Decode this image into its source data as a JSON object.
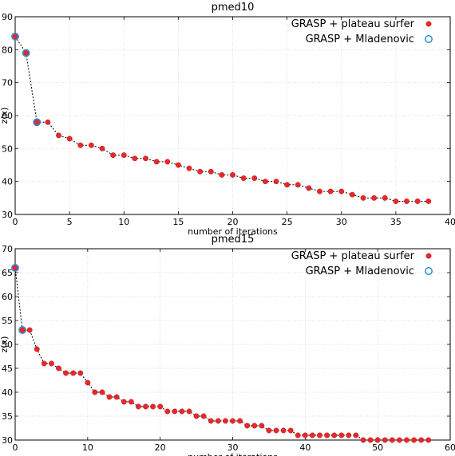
{
  "chart_data": [
    {
      "type": "line",
      "title": "pmed10",
      "xlabel": "number of iterations",
      "ylabel": "z(x)",
      "xlim": [
        0,
        40
      ],
      "ylim": [
        30,
        90
      ],
      "x_ticks": [
        "0",
        "5",
        "10",
        "15",
        "20",
        "25",
        "30",
        "35",
        "40"
      ],
      "y_ticks": [
        "30",
        "40",
        "50",
        "60",
        "70",
        "80",
        "90"
      ],
      "grid": true,
      "legend_position": "top-right",
      "series": [
        {
          "name": "GRASP + plateau surfer",
          "marker": "filled-circle",
          "color": "#e8282b",
          "x": [
            0,
            1,
            2,
            3,
            4,
            5,
            6,
            7,
            8,
            9,
            10,
            11,
            12,
            13,
            14,
            15,
            16,
            17,
            18,
            19,
            20,
            21,
            22,
            23,
            24,
            25,
            26,
            27,
            28,
            29,
            30,
            31,
            32,
            33,
            34,
            35,
            36,
            37,
            38
          ],
          "y": [
            84,
            79,
            58,
            58,
            54,
            53,
            51,
            51,
            50,
            48,
            48,
            47,
            47,
            46,
            46,
            45,
            44,
            43,
            43,
            42,
            42,
            41,
            41,
            40,
            40,
            39,
            39,
            38,
            37,
            37,
            37,
            36,
            35,
            35,
            35,
            34,
            34,
            34,
            34
          ]
        },
        {
          "name": "GRASP + Mladenovic",
          "marker": "hollow-circle",
          "color": "#2b8fd6",
          "x": [
            0,
            1,
            2
          ],
          "y": [
            84,
            79,
            58
          ]
        }
      ]
    },
    {
      "type": "line",
      "title": "pmed15",
      "xlabel": "number of iterations",
      "ylabel": "z(x)",
      "xlim": [
        0,
        60
      ],
      "ylim": [
        30,
        70
      ],
      "x_ticks": [
        "0",
        "10",
        "20",
        "30",
        "40",
        "50",
        "60"
      ],
      "y_ticks": [
        "30",
        "35",
        "40",
        "45",
        "50",
        "55",
        "60",
        "65",
        "70"
      ],
      "grid": true,
      "legend_position": "top-right",
      "series": [
        {
          "name": "GRASP + plateau surfer",
          "marker": "filled-circle",
          "color": "#e8282b",
          "x": [
            0,
            1,
            2,
            3,
            4,
            5,
            6,
            7,
            8,
            9,
            10,
            11,
            12,
            13,
            14,
            15,
            16,
            17,
            18,
            19,
            20,
            21,
            22,
            23,
            24,
            25,
            26,
            27,
            28,
            29,
            30,
            31,
            32,
            33,
            34,
            35,
            36,
            37,
            38,
            39,
            40,
            41,
            42,
            43,
            44,
            45,
            46,
            47,
            48,
            49,
            50,
            51,
            52,
            53,
            54,
            55,
            56,
            57
          ],
          "y": [
            66,
            53,
            53,
            49,
            46,
            46,
            45,
            44,
            44,
            44,
            42,
            40,
            40,
            39,
            39,
            38,
            38,
            37,
            37,
            37,
            37,
            36,
            36,
            36,
            36,
            35,
            35,
            34,
            34,
            34,
            34,
            34,
            33,
            33,
            33,
            32,
            32,
            32,
            32,
            31,
            31,
            31,
            31,
            31,
            31,
            31,
            31,
            31,
            30,
            30,
            30,
            30,
            30,
            30,
            30,
            30,
            30,
            30
          ]
        },
        {
          "name": "GRASP + Mladenovic",
          "marker": "hollow-circle",
          "color": "#2b8fd6",
          "x": [
            0,
            1
          ],
          "y": [
            66,
            53
          ]
        }
      ]
    }
  ]
}
